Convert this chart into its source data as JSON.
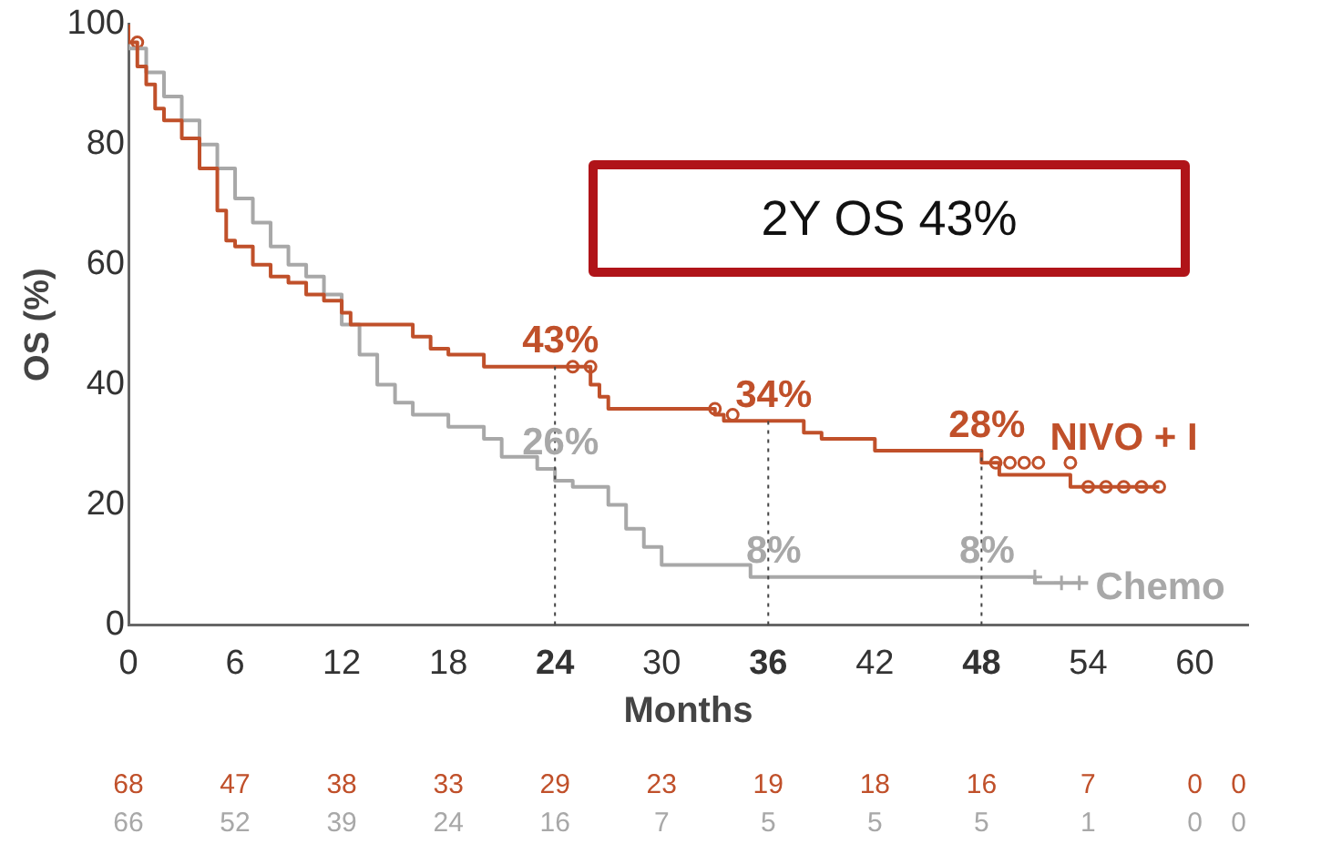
{
  "chart_data": {
    "type": "step",
    "xlabel": "Months",
    "ylabel": "OS (%)",
    "xlim": [
      0,
      63
    ],
    "xticks": [
      0,
      6,
      12,
      18,
      24,
      30,
      36,
      42,
      48,
      54,
      60
    ],
    "ylim": [
      0,
      100
    ],
    "yticks": [
      0,
      20,
      40,
      60,
      80,
      100
    ],
    "legend": false,
    "grid": false,
    "series": [
      {
        "name": "NIVO + I",
        "color": "#c0502a",
        "x": [
          0,
          0.5,
          1,
          1.5,
          2,
          3,
          4,
          5,
          5.5,
          6,
          7,
          8,
          9,
          10,
          11,
          12,
          12.5,
          13,
          16,
          17,
          18,
          20,
          21,
          26,
          26.5,
          27,
          28,
          33,
          33.5,
          34,
          38,
          39,
          42,
          48,
          49,
          50,
          53,
          53.5,
          58
        ],
        "values": [
          100,
          97,
          93,
          90,
          86,
          84,
          81,
          76,
          69,
          64,
          63,
          60,
          58,
          57,
          55,
          54,
          52,
          50,
          50,
          48,
          46,
          45,
          43,
          43,
          40,
          38,
          36,
          36,
          35,
          34,
          34,
          32,
          31,
          29,
          27,
          25,
          25,
          23,
          23
        ]
      },
      {
        "name": "Chemo",
        "color": "#a8a8a8",
        "x": [
          0,
          1,
          2,
          3,
          4,
          5,
          6,
          7,
          8,
          9,
          10,
          11,
          12,
          13,
          14,
          15,
          16,
          18,
          20,
          21,
          23,
          24,
          25,
          27,
          28,
          29,
          30,
          31,
          35,
          36,
          51,
          53,
          54
        ],
        "values": [
          100,
          96,
          92,
          88,
          84,
          80,
          76,
          71,
          67,
          63,
          60,
          58,
          55,
          50,
          45,
          40,
          37,
          35,
          33,
          31,
          28,
          26,
          24,
          23,
          20,
          16,
          13,
          10,
          10,
          8,
          8,
          7,
          7
        ]
      },
      {
        "type": "scatter",
        "marker": "circle",
        "color": "#c0502a",
        "x": [
          0.5,
          25,
          26,
          33,
          34,
          48.8,
          49.6,
          50.4,
          51.2,
          53,
          54,
          55,
          56,
          57,
          58
        ],
        "values": [
          97,
          43,
          43,
          36,
          35,
          27,
          27,
          27,
          27,
          27,
          23,
          23,
          23,
          23,
          23
        ]
      },
      {
        "type": "scatter",
        "marker": "cross",
        "color": "#a8a8a8",
        "x": [
          51,
          52.5,
          53.5
        ],
        "values": [
          8,
          7,
          7
        ]
      }
    ],
    "ref_lines": [
      {
        "axis": "x",
        "value": 24,
        "line_style": "dotted",
        "color": "#444444"
      },
      {
        "axis": "x",
        "value": 36,
        "line_style": "dotted",
        "color": "#444444"
      },
      {
        "axis": "x",
        "value": 48,
        "line_style": "dotted",
        "color": "#444444"
      }
    ],
    "annotations": [
      "2Y OS 43%",
      {
        "text": "43%",
        "x": 24,
        "y": 43
      },
      {
        "text": "34%",
        "x": 36,
        "y": 34
      },
      {
        "text": "28%",
        "x": 48,
        "y": 29
      },
      {
        "text": "26%",
        "x": 24,
        "y": 26
      },
      {
        "text": "8%",
        "x": 36,
        "y": 8
      },
      {
        "text": "8%",
        "x": 48,
        "y": 8
      },
      "68",
      "47",
      "38",
      "33",
      "29",
      "23",
      "19",
      "18",
      "16",
      "7",
      "0",
      "0",
      "66",
      "52",
      "39",
      "24",
      "16",
      "7",
      "5",
      "5",
      "5",
      "1",
      "0",
      "0"
    ]
  }
}
